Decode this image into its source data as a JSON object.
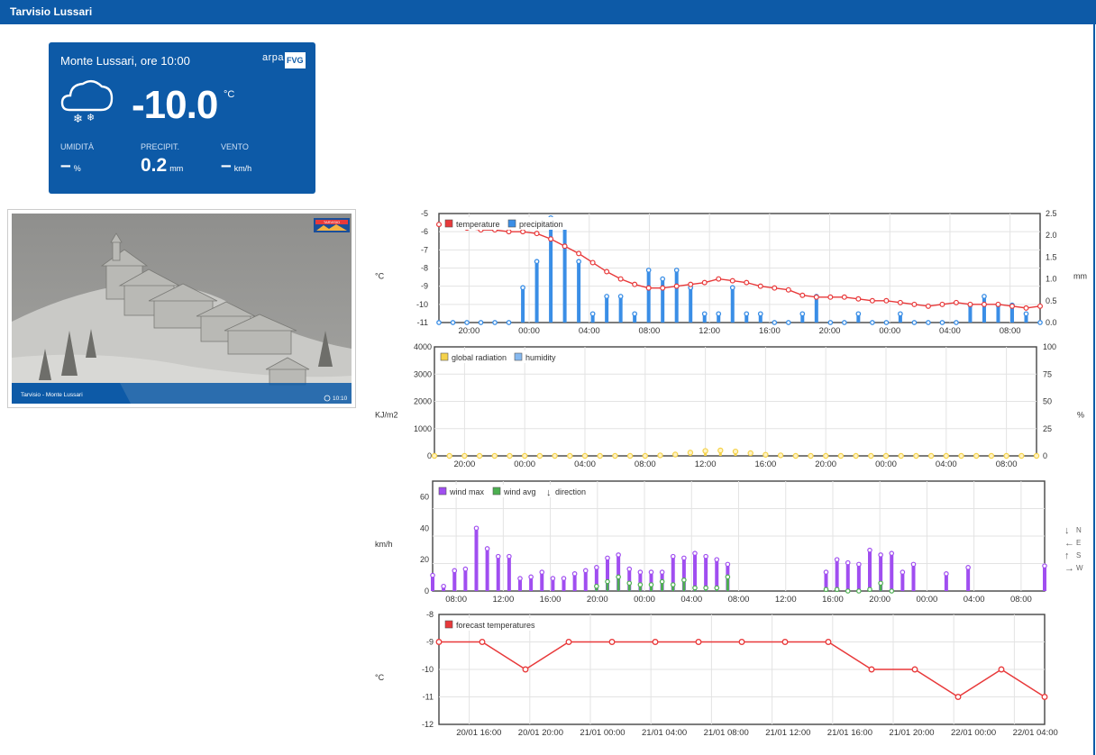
{
  "header": {
    "title": "Tarvisio Lussari"
  },
  "card": {
    "location": "Monte Lussari, ore 10:00",
    "logo_left": "arpa",
    "logo_right": "FVG",
    "weather_icon": "cloud-snow-icon",
    "temperature": "-10.0",
    "temperature_unit": "°C",
    "humidity_label": "UMIDITÀ",
    "humidity_value": "–",
    "humidity_unit": "%",
    "precip_label": "PRECIPIT.",
    "precip_value": "0.2",
    "precip_unit": "mm",
    "wind_label": "VENTO",
    "wind_value": "–",
    "wind_unit": "km/h"
  },
  "webcam": {
    "caption": "Tarvisio - Monte Lussari",
    "time": "10:10",
    "badge": "TARVISIO"
  },
  "colors": {
    "temperature": "#e8393a",
    "precipitation": "#3a8ee6",
    "radiation": "#f5d24a",
    "humidity": "#86b9f0",
    "wind_max": "#a04ef0",
    "wind_avg": "#4caf50",
    "forecast": "#e8393a",
    "brand": "#0d5aa7"
  },
  "chart_data": [
    {
      "type": "line",
      "legend": [
        "temperature",
        "precipitation"
      ],
      "ylabel": "°C",
      "y2label": "mm",
      "ylim": [
        -11,
        -5
      ],
      "y2lim": [
        0,
        2.5
      ],
      "yticks": [
        "-5",
        "-6",
        "-7",
        "-8",
        "-9",
        "-10",
        "-11"
      ],
      "y2ticks": [
        "2.5",
        "2.0",
        "1.5",
        "1.0",
        "0.5",
        "0.0"
      ],
      "xticks": [
        "20:00",
        "00:00",
        "04:00",
        "08:00",
        "12:00",
        "16:00",
        "20:00",
        "00:00",
        "04:00",
        "08:00"
      ],
      "series": [
        {
          "name": "temperature",
          "values": [
            -5.6,
            -5.7,
            -5.8,
            -5.9,
            -5.9,
            -6.0,
            -6.0,
            -6.1,
            -6.4,
            -6.8,
            -7.2,
            -7.7,
            -8.2,
            -8.6,
            -8.9,
            -9.1,
            -9.1,
            -9.0,
            -8.9,
            -8.8,
            -8.6,
            -8.7,
            -8.8,
            -9.0,
            -9.1,
            -9.2,
            -9.5,
            -9.6,
            -9.6,
            -9.6,
            -9.7,
            -9.8,
            -9.8,
            -9.9,
            -10.0,
            -10.1,
            -10.0,
            -9.9,
            -10.0,
            -10.0,
            -10.0,
            -10.1,
            -10.2,
            -10.1
          ]
        },
        {
          "name": "precipitation",
          "values": [
            0,
            0,
            0,
            0,
            0,
            0,
            0.8,
            1.4,
            2.4,
            2.2,
            1.4,
            0.2,
            0.6,
            0.6,
            0.2,
            1.2,
            1.0,
            1.2,
            0.8,
            0.2,
            0.2,
            0.8,
            0.2,
            0.2,
            0,
            0,
            0.2,
            0.6,
            0,
            0,
            0.2,
            0,
            0,
            0.2,
            0,
            0,
            0,
            0,
            0.4,
            0.6,
            0.4,
            0.4,
            0.2,
            0
          ]
        }
      ]
    },
    {
      "type": "line",
      "legend": [
        "global radiation",
        "humidity"
      ],
      "ylabel": "KJ/m2",
      "y2label": "%",
      "ylim": [
        0,
        4000
      ],
      "y2lim": [
        0,
        100
      ],
      "yticks": [
        "4000",
        "3000",
        "2000",
        "1000",
        "0"
      ],
      "y2ticks": [
        "100",
        "75",
        "50",
        "25",
        "0"
      ],
      "xticks": [
        "20:00",
        "00:00",
        "04:00",
        "08:00",
        "12:00",
        "16:00",
        "20:00",
        "00:00",
        "04:00",
        "08:00"
      ],
      "series": [
        {
          "name": "global radiation",
          "values": [
            0,
            0,
            0,
            0,
            0,
            0,
            0,
            0,
            0,
            0,
            0,
            0,
            0,
            0,
            0,
            20,
            50,
            120,
            180,
            200,
            160,
            100,
            40,
            20,
            0,
            0,
            0,
            0,
            0,
            0,
            0,
            0,
            0,
            0,
            0,
            0,
            0,
            0,
            0,
            0,
            0
          ]
        },
        {
          "name": "humidity",
          "values": []
        }
      ]
    },
    {
      "type": "bar",
      "legend": [
        "wind max",
        "wind avg",
        "direction"
      ],
      "ylabel": "km/h",
      "ylim": [
        0,
        70
      ],
      "yticks": [
        "60",
        "40",
        "20",
        "0"
      ],
      "xticks": [
        "08:00",
        "12:00",
        "16:00",
        "20:00",
        "00:00",
        "04:00",
        "08:00",
        "12:00",
        "16:00",
        "20:00",
        "00:00",
        "04:00",
        "08:00"
      ],
      "direction_labels": [
        "N",
        "E",
        "S",
        "W"
      ],
      "series": [
        {
          "name": "wind max",
          "values": [
            10,
            3,
            13,
            14,
            40,
            27,
            22,
            22,
            8,
            9,
            12,
            8,
            8,
            11,
            13,
            15,
            21,
            23,
            14,
            12,
            12,
            12,
            22,
            21,
            24,
            22,
            20,
            17,
            null,
            null,
            null,
            null,
            null,
            null,
            null,
            null,
            12,
            20,
            18,
            17,
            26,
            23,
            24,
            12,
            17,
            null,
            null,
            11,
            null,
            15,
            null,
            null,
            null,
            null,
            null,
            null,
            16
          ]
        },
        {
          "name": "wind avg",
          "values": [
            null,
            null,
            null,
            null,
            null,
            null,
            null,
            null,
            null,
            null,
            null,
            null,
            null,
            null,
            null,
            3,
            6,
            9,
            5,
            4,
            4,
            6,
            4,
            7,
            2,
            2,
            2,
            9,
            null,
            null,
            null,
            null,
            null,
            null,
            null,
            null,
            1,
            1,
            0,
            0,
            1,
            5,
            0,
            null,
            null,
            null,
            null,
            null,
            null,
            null,
            null,
            null,
            null,
            null,
            null,
            null,
            null
          ]
        }
      ]
    },
    {
      "type": "line",
      "legend": [
        "forecast temperatures"
      ],
      "ylabel": "°C",
      "ylim": [
        -12,
        -8
      ],
      "yticks": [
        "-8",
        "-9",
        "-10",
        "-11",
        "-12"
      ],
      "xticks": [
        "20/01 16:00",
        "20/01 20:00",
        "21/01 00:00",
        "21/01 04:00",
        "21/01 08:00",
        "21/01 12:00",
        "21/01 16:00",
        "21/01 20:00",
        "22/01 00:00",
        "22/01 04:00"
      ],
      "series": [
        {
          "name": "forecast temperatures",
          "values": [
            -9,
            -9,
            -10,
            -9,
            -9,
            -9,
            -9,
            -9,
            -9,
            -9,
            -10,
            -10,
            -11,
            -10,
            -11
          ]
        }
      ]
    }
  ]
}
